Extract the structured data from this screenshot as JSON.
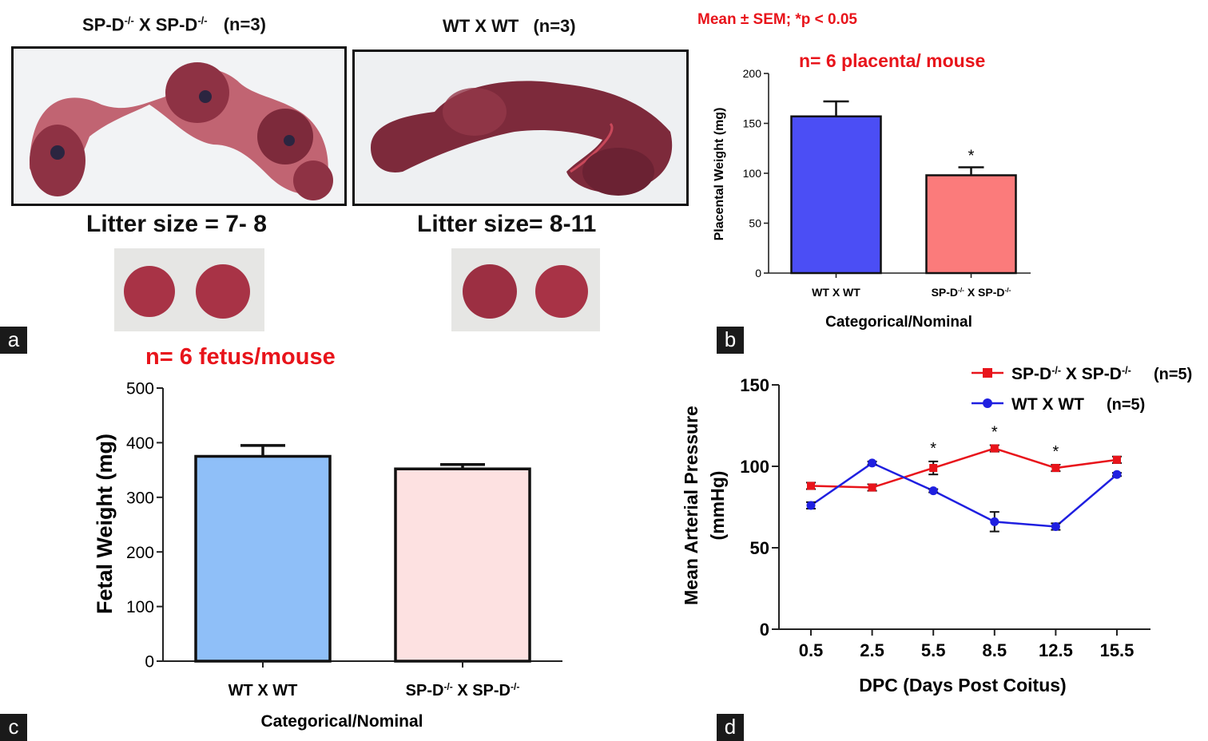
{
  "panel_a": {
    "letter": "a",
    "left_title": {
      "base1": "SP-D",
      "sup1": "-/-",
      "mid": " X SP-D",
      "sup2": "-/-",
      "n": "(n=3)"
    },
    "right_title": "WT X WT",
    "right_n": "(n=3)",
    "left_litter": "Litter size = 7- 8",
    "right_litter": "Litter size= 8-11",
    "colors": {
      "tissue_dark": "#6b2233",
      "tissue_light": "#b84a5a",
      "placenta": "#a83346"
    }
  },
  "stats_note": "Mean ± SEM; *p < 0.05",
  "chart_data": [
    {
      "id": "b",
      "letter": "b",
      "type": "bar",
      "annotation": "n= 6 placenta/ mouse",
      "categories": [
        "WT X WT",
        "SP-D-/- X SP-D-/-"
      ],
      "values": [
        157,
        98
      ],
      "errors": [
        15,
        8
      ],
      "significance": [
        "",
        "*"
      ],
      "colors": [
        "#4b4ef5",
        "#fb7b7b"
      ],
      "xlabel": "Categorical/Nominal",
      "ylabel": "Placental Weight (mg)",
      "ylim": [
        0,
        200
      ],
      "yticks": [
        0,
        50,
        100,
        150,
        200
      ]
    },
    {
      "id": "c",
      "letter": "c",
      "type": "bar",
      "annotation": "n= 6 fetus/mouse",
      "categories": [
        "WT X WT",
        "SP-D-/- X SP-D-/-"
      ],
      "values": [
        375,
        352
      ],
      "errors": [
        20,
        8
      ],
      "colors": [
        "#8fbff8",
        "#fde1e1"
      ],
      "xlabel": "Categorical/Nominal",
      "ylabel": "Fetal Weight (mg)",
      "ylim": [
        0,
        500
      ],
      "yticks": [
        0,
        100,
        200,
        300,
        400,
        500
      ]
    },
    {
      "id": "d",
      "letter": "d",
      "type": "line",
      "categories": [
        "0.5",
        "2.5",
        "5.5",
        "8.5",
        "12.5",
        "15.5"
      ],
      "series": [
        {
          "name": "SP-D-/- X SP-D-/-",
          "n": "(n=5)",
          "color": "#e8141b",
          "marker": "square",
          "values": [
            88,
            87,
            99,
            111,
            99,
            104
          ],
          "errors": [
            2,
            2,
            4,
            2,
            2,
            2
          ]
        },
        {
          "name": "WT X WT",
          "n": "(n=5)",
          "color": "#1f1fe0",
          "marker": "circle",
          "values": [
            76,
            102,
            85,
            66,
            63,
            95
          ],
          "errors": [
            2,
            1,
            1,
            6,
            2,
            1
          ]
        }
      ],
      "significance": [
        "",
        "",
        "*",
        "*",
        "*",
        ""
      ],
      "xlabel": "DPC (Days Post Coitus)",
      "ylabel": "Mean Arterial Pressure (mmHg)",
      "ylabel_line1": "Mean Arterial Pressure",
      "ylabel_line2": "(mmHg)",
      "ylim": [
        0,
        150
      ],
      "yticks": [
        0,
        50,
        100,
        150
      ]
    }
  ]
}
